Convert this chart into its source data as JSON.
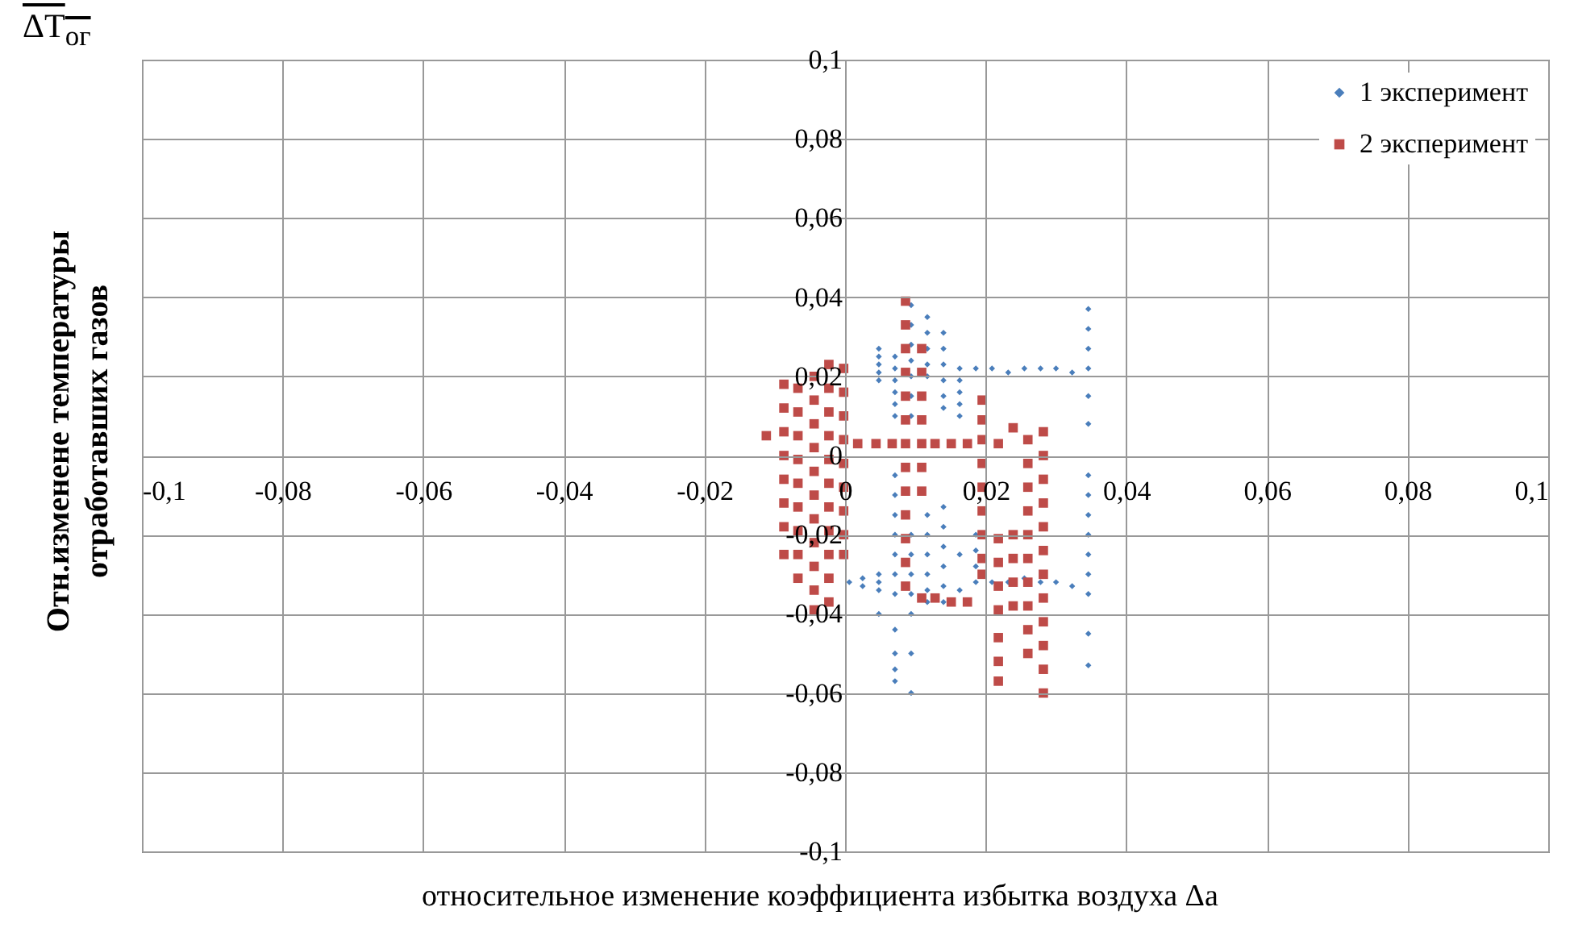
{
  "chart_data": {
    "type": "scatter",
    "xlabel": "относительное изменение коэффициента избытка воздуха Δa",
    "ylabel": "Отн.изменене температуры\nотработавших газов",
    "annotations": [
      "ΔT$_{ог}$"
    ],
    "xlim": [
      -0.1,
      0.1
    ],
    "ylim": [
      -0.1,
      0.1
    ],
    "xticks": [
      {
        "value": -0.1,
        "label": "-0,1"
      },
      {
        "value": -0.08,
        "label": "-0,08"
      },
      {
        "value": -0.06,
        "label": "-0,06"
      },
      {
        "value": -0.04,
        "label": "-0,04"
      },
      {
        "value": -0.02,
        "label": "-0,02"
      },
      0,
      {
        "value": 0.02,
        "label": "0,02"
      },
      {
        "value": 0.04,
        "label": "0,04"
      },
      {
        "value": 0.06,
        "label": "0,06"
      },
      {
        "value": 0.08,
        "label": "0,08"
      },
      {
        "value": 0.1,
        "label": "0,1"
      }
    ],
    "yticks": [
      {
        "value": -0.1,
        "label": "-0,1"
      },
      {
        "value": -0.08,
        "label": "-0,08"
      },
      {
        "value": -0.06,
        "label": "-0,06"
      },
      {
        "value": -0.04,
        "label": "-0,04"
      },
      {
        "value": -0.02,
        "label": "-0,02"
      },
      0,
      {
        "value": 0.02,
        "label": "0,02"
      },
      {
        "value": 0.04,
        "label": "0,04"
      },
      {
        "value": 0.06,
        "label": "0,06"
      },
      {
        "value": 0.08,
        "label": "0,08"
      },
      {
        "value": 0.1,
        "label": "0,1"
      }
    ],
    "grid": true,
    "legend": "top right",
    "series": [
      {
        "name": "1 эксперимент",
        "color": "#4a7ebb",
        "marker": "diamond",
        "x": [
          0.0006,
          0.0025,
          0.0025,
          0.0048,
          0.0048,
          0.0048,
          0.0048,
          0.0048,
          0.0048,
          0.0048,
          0.0048,
          0.0048,
          0.0071,
          0.0071,
          0.0071,
          0.0071,
          0.0071,
          0.0071,
          0.0071,
          0.0071,
          0.0071,
          0.0071,
          0.0071,
          0.0071,
          0.0071,
          0.0071,
          0.0071,
          0.0071,
          0.0071,
          0.0094,
          0.0094,
          0.0094,
          0.0094,
          0.0094,
          0.0094,
          0.0094,
          0.0094,
          0.0094,
          0.0094,
          0.0094,
          0.0094,
          0.0094,
          0.0094,
          0.0117,
          0.0117,
          0.0117,
          0.0117,
          0.0117,
          0.0117,
          0.0117,
          0.0117,
          0.0117,
          0.0117,
          0.0117,
          0.014,
          0.014,
          0.014,
          0.014,
          0.014,
          0.014,
          0.014,
          0.014,
          0.014,
          0.014,
          0.014,
          0.014,
          0.0163,
          0.0163,
          0.0163,
          0.0163,
          0.0163,
          0.0163,
          0.0163,
          0.0186,
          0.0186,
          0.0186,
          0.0186,
          0.0186,
          0.0209,
          0.0209,
          0.0232,
          0.0232,
          0.0255,
          0.0255,
          0.0278,
          0.0278,
          0.03,
          0.03,
          0.0323,
          0.0323,
          0.0346,
          0.0346,
          0.0346,
          0.0346,
          0.0346,
          0.0346,
          0.0346,
          0.0346,
          0.0346,
          0.0346,
          0.0346,
          0.0346,
          0.0346,
          0.0346,
          0.0346
        ],
        "values": [
          -0.032,
          -0.031,
          -0.033,
          0.027,
          0.025,
          0.023,
          0.021,
          0.019,
          -0.03,
          -0.032,
          -0.034,
          -0.04,
          0.025,
          0.022,
          0.019,
          0.016,
          0.013,
          0.01,
          -0.005,
          -0.01,
          -0.015,
          -0.02,
          -0.025,
          -0.03,
          -0.035,
          -0.044,
          -0.05,
          -0.054,
          -0.057,
          0.038,
          0.033,
          0.028,
          0.024,
          0.02,
          0.015,
          0.01,
          -0.02,
          -0.025,
          -0.03,
          -0.035,
          -0.04,
          -0.05,
          -0.06,
          0.035,
          0.031,
          0.027,
          0.023,
          0.02,
          -0.015,
          -0.02,
          -0.025,
          -0.03,
          -0.034,
          -0.037,
          0.031,
          0.027,
          0.023,
          0.019,
          0.015,
          0.012,
          -0.013,
          -0.018,
          -0.023,
          -0.028,
          -0.033,
          -0.037,
          0.022,
          0.019,
          0.016,
          0.013,
          0.01,
          -0.025,
          -0.034,
          0.022,
          -0.02,
          -0.024,
          -0.028,
          -0.032,
          0.022,
          -0.032,
          0.021,
          -0.032,
          0.022,
          -0.031,
          0.022,
          -0.032,
          0.022,
          -0.032,
          0.021,
          -0.033,
          0.037,
          0.032,
          0.027,
          0.022,
          0.015,
          0.008,
          -0.005,
          -0.01,
          -0.015,
          -0.02,
          -0.025,
          -0.03,
          -0.035,
          -0.045,
          -0.053
        ]
      },
      {
        "name": "2 эксперимент",
        "color": "#be4b48",
        "marker": "square",
        "x": [
          -0.0112,
          -0.0087,
          -0.0087,
          -0.0087,
          -0.0087,
          -0.0087,
          -0.0087,
          -0.0087,
          -0.0087,
          -0.0067,
          -0.0067,
          -0.0067,
          -0.0067,
          -0.0067,
          -0.0067,
          -0.0067,
          -0.0067,
          -0.0067,
          -0.0044,
          -0.0044,
          -0.0044,
          -0.0044,
          -0.0044,
          -0.0044,
          -0.0044,
          -0.0044,
          -0.0044,
          -0.0044,
          -0.0044,
          -0.0023,
          -0.0023,
          -0.0023,
          -0.0023,
          -0.0023,
          -0.0023,
          -0.0023,
          -0.0023,
          -0.0023,
          -0.0023,
          -0.0023,
          -0.0002,
          -0.0002,
          -0.0002,
          -0.0002,
          -0.0002,
          -0.0002,
          -0.0002,
          -0.0002,
          -0.0002,
          0.0018,
          0.0044,
          0.0067,
          0.0086,
          0.0086,
          0.0086,
          0.0086,
          0.0086,
          0.0086,
          0.0086,
          0.0086,
          0.0086,
          0.0086,
          0.0086,
          0.0086,
          0.0086,
          0.0109,
          0.0109,
          0.0109,
          0.0109,
          0.0109,
          0.0109,
          0.0109,
          0.0109,
          0.0128,
          0.0128,
          0.0151,
          0.0151,
          0.0174,
          0.0174,
          0.0195,
          0.0195,
          0.0195,
          0.0195,
          0.0195,
          0.0195,
          0.0195,
          0.0195,
          0.0195,
          0.0218,
          0.0218,
          0.0218,
          0.0218,
          0.0218,
          0.0218,
          0.0218,
          0.0218,
          0.0239,
          0.0239,
          0.0239,
          0.0239,
          0.0239,
          0.026,
          0.026,
          0.026,
          0.026,
          0.026,
          0.026,
          0.026,
          0.026,
          0.026,
          0.026,
          0.0282,
          0.0282,
          0.0282,
          0.0282,
          0.0282,
          0.0282,
          0.0282,
          0.0282,
          0.0282,
          0.0282,
          0.0282,
          0.0282
        ],
        "values": [
          0.005,
          0.018,
          0.012,
          0.006,
          0,
          -0.006,
          -0.012,
          -0.018,
          -0.025,
          0.017,
          0.011,
          0.005,
          -0.001,
          -0.007,
          -0.013,
          -0.019,
          -0.025,
          -0.031,
          0.02,
          0.014,
          0.008,
          0.002,
          -0.004,
          -0.01,
          -0.016,
          -0.022,
          -0.028,
          -0.034,
          -0.039,
          0.023,
          0.017,
          0.011,
          0.005,
          -0.001,
          -0.007,
          -0.013,
          -0.019,
          -0.025,
          -0.031,
          -0.037,
          0.022,
          0.016,
          0.01,
          0.004,
          -0.002,
          -0.008,
          -0.014,
          -0.02,
          -0.025,
          0.003,
          0.003,
          0.003,
          0.039,
          0.033,
          0.027,
          0.021,
          0.015,
          0.009,
          0.003,
          -0.003,
          -0.009,
          -0.015,
          -0.021,
          -0.027,
          -0.033,
          0.027,
          0.021,
          0.015,
          0.009,
          0.003,
          -0.003,
          -0.009,
          -0.036,
          0.003,
          -0.036,
          0.003,
          -0.037,
          0.003,
          -0.037,
          0.014,
          0.009,
          0.004,
          -0.002,
          -0.008,
          -0.014,
          -0.02,
          -0.026,
          -0.03,
          0.003,
          -0.021,
          -0.027,
          -0.033,
          -0.039,
          -0.046,
          -0.052,
          -0.057,
          0.007,
          -0.02,
          -0.026,
          -0.032,
          -0.038,
          0.004,
          -0.002,
          -0.008,
          -0.014,
          -0.02,
          -0.026,
          -0.032,
          -0.038,
          -0.044,
          -0.05,
          0.006,
          0,
          -0.006,
          -0.012,
          -0.018,
          -0.024,
          -0.03,
          -0.036,
          -0.042,
          -0.048,
          -0.054,
          -0.06
        ]
      }
    ]
  }
}
